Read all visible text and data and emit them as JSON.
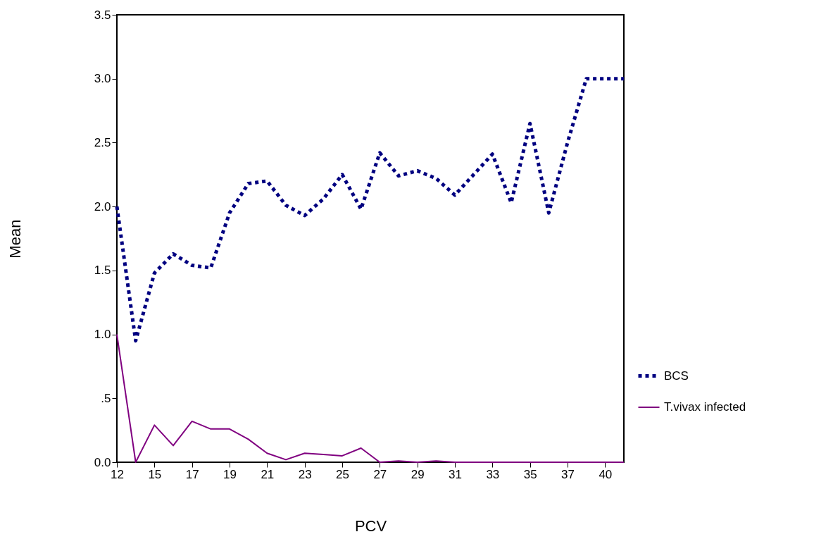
{
  "chart_data": {
    "type": "line",
    "xlabel": "PCV",
    "ylabel": "Mean",
    "categories": [
      "12",
      null,
      "15",
      null,
      "17",
      null,
      "19",
      null,
      "21",
      null,
      "23",
      null,
      "25",
      null,
      "27",
      null,
      "29",
      null,
      "31",
      null,
      "33",
      null,
      "35",
      null,
      "37",
      null,
      "40",
      null
    ],
    "series": [
      {
        "name": "BCS",
        "color": "#000080",
        "line_style": "dotted",
        "values": [
          2.0,
          0.95,
          1.48,
          1.63,
          1.54,
          1.52,
          1.95,
          2.18,
          2.2,
          2.01,
          1.93,
          2.06,
          2.25,
          1.98,
          2.42,
          2.24,
          2.28,
          2.22,
          2.09,
          2.25,
          2.41,
          2.03,
          2.65,
          1.95,
          2.5,
          3.0,
          3.0,
          3.0
        ]
      },
      {
        "name": "T.vivax infected",
        "color": "#800080",
        "line_style": "solid",
        "values": [
          1.0,
          0.0,
          0.29,
          0.13,
          0.32,
          0.26,
          0.26,
          0.18,
          0.07,
          0.02,
          0.07,
          0.06,
          0.05,
          0.11,
          0.0,
          0.01,
          0.0,
          0.01,
          0.0,
          0.0,
          0.0,
          0.0,
          0.0,
          0.0,
          0.0,
          0.0,
          0.0,
          0.0
        ]
      }
    ],
    "ylim": [
      0,
      3.5
    ],
    "yticks": [
      {
        "value": 0,
        "label": "0.0"
      },
      {
        "value": 0.5,
        "label": ".5"
      },
      {
        "value": 1,
        "label": "1.0"
      },
      {
        "value": 1.5,
        "label": "1.5"
      },
      {
        "value": 2,
        "label": "2.0"
      },
      {
        "value": 2.5,
        "label": "2.5"
      },
      {
        "value": 3,
        "label": "3.0"
      },
      {
        "value": 3.5,
        "label": "3.5"
      }
    ],
    "grid": false,
    "legend": "bottom right",
    "marker": "none"
  }
}
